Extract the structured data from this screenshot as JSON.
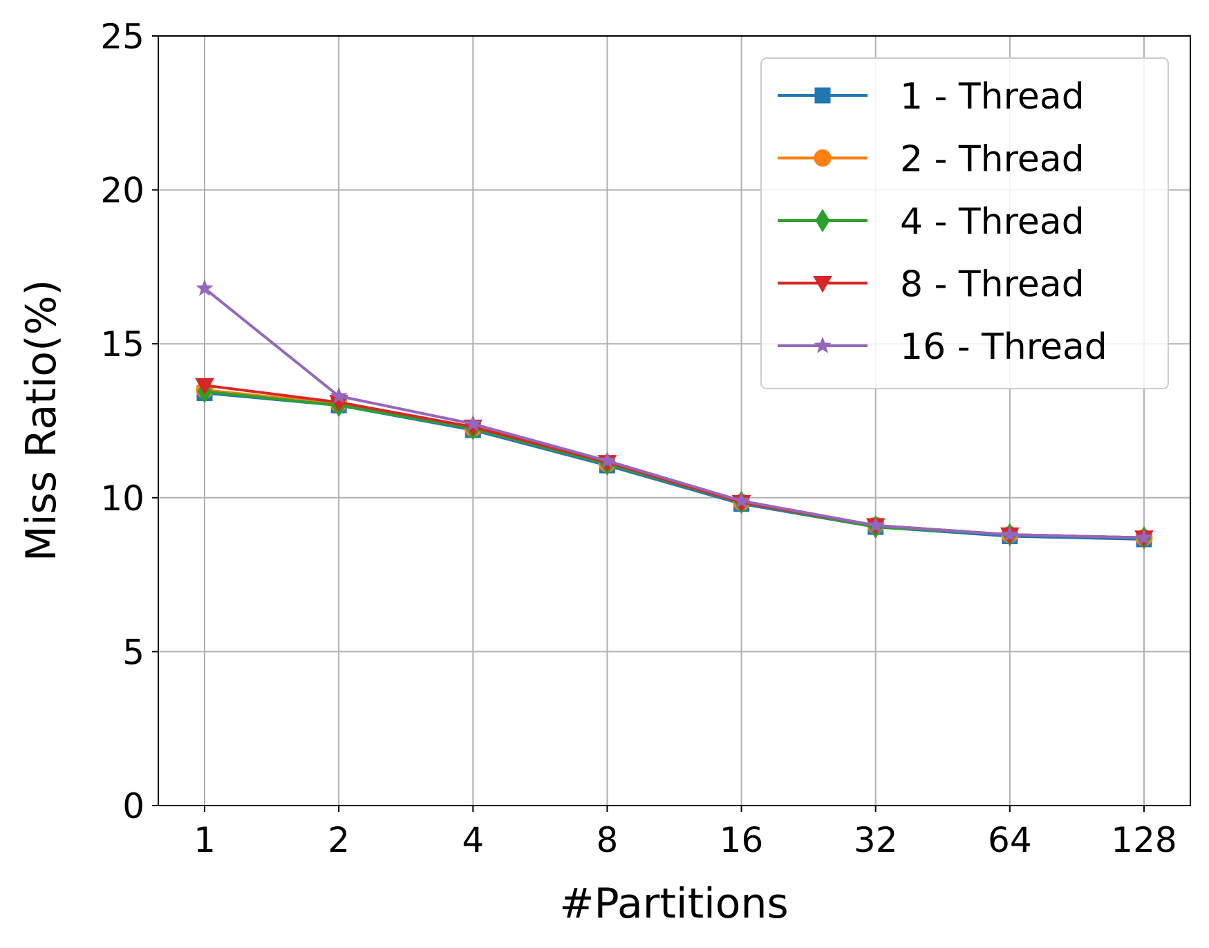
{
  "chart_data": {
    "type": "line",
    "title": "",
    "xlabel": "#Partitions",
    "ylabel": "Miss Ratio(%)",
    "categories": [
      "1",
      "2",
      "4",
      "8",
      "16",
      "32",
      "64",
      "128"
    ],
    "yticks": [
      "0",
      "5",
      "10",
      "15",
      "20",
      "25"
    ],
    "ylim": [
      0,
      25
    ],
    "grid": true,
    "legend_position": "top-right",
    "series": [
      {
        "name": "1 - Thread",
        "color": "#1f77b4",
        "marker": "square",
        "values": [
          13.4,
          13.0,
          12.2,
          11.05,
          9.8,
          9.05,
          8.75,
          8.65
        ]
      },
      {
        "name": "2 - Thread",
        "color": "#ff7f0e",
        "marker": "circle",
        "values": [
          13.5,
          13.05,
          12.25,
          11.1,
          9.85,
          9.1,
          8.8,
          8.7
        ]
      },
      {
        "name": "4 - Thread",
        "color": "#2ca02c",
        "marker": "diamond",
        "values": [
          13.45,
          13.0,
          12.25,
          11.1,
          9.85,
          9.05,
          8.8,
          8.7
        ]
      },
      {
        "name": "8 - Thread",
        "color": "#d62728",
        "marker": "triangle-down",
        "values": [
          13.65,
          13.1,
          12.3,
          11.15,
          9.85,
          9.1,
          8.8,
          8.7
        ]
      },
      {
        "name": "16 - Thread",
        "color": "#9467bd",
        "marker": "star",
        "values": [
          16.8,
          13.3,
          12.4,
          11.2,
          9.9,
          9.1,
          8.8,
          8.7
        ]
      }
    ]
  }
}
